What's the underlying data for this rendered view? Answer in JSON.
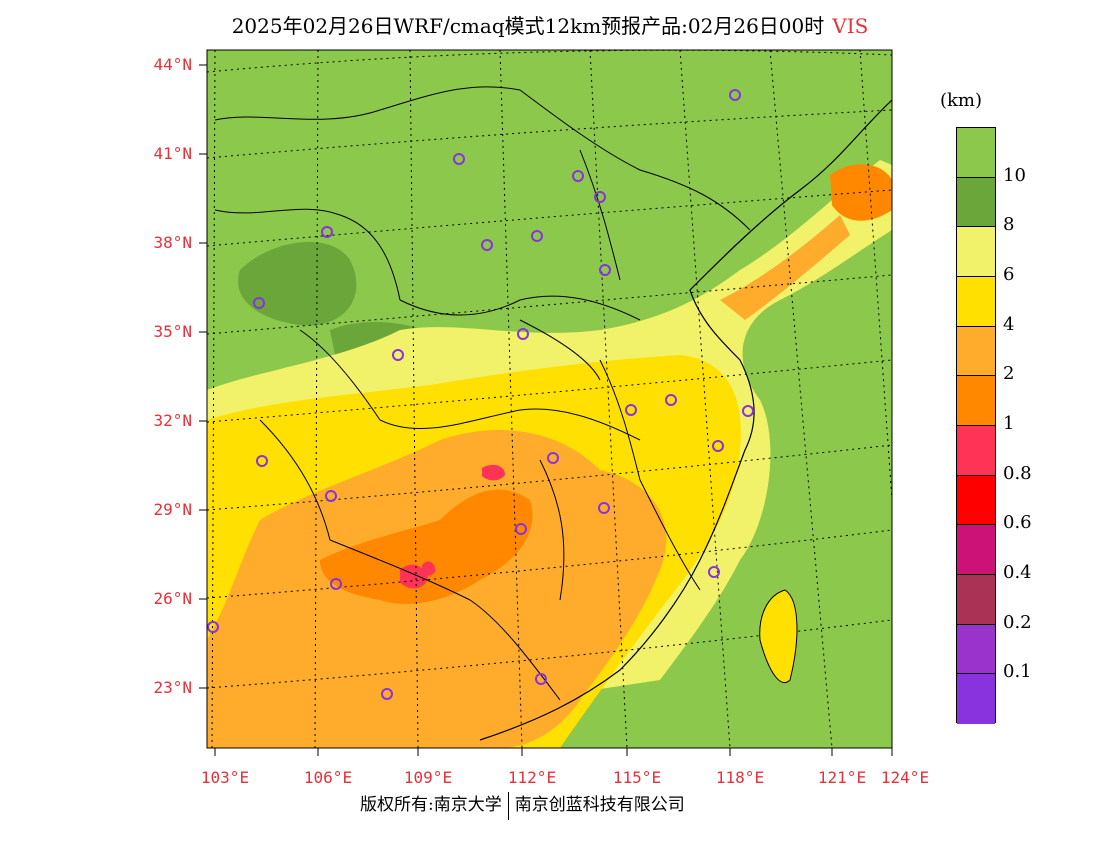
{
  "title": {
    "main": "2025年02月26日WRF/cmaq模式12km预报产品:02月26日00时",
    "variable": "VIS"
  },
  "axes": {
    "lat_labels": [
      "44°N",
      "41°N",
      "38°N",
      "35°N",
      "32°N",
      "29°N",
      "26°N",
      "23°N"
    ],
    "lon_labels": [
      "103°E",
      "106°E",
      "109°E",
      "112°E",
      "115°E",
      "118°E",
      "121°E",
      "124°E"
    ]
  },
  "legend": {
    "unit": "(km)",
    "labels": [
      "10",
      "8",
      "6",
      "4",
      "2",
      "1",
      "0.8",
      "0.6",
      "0.4",
      "0.2",
      "0.1"
    ],
    "bands": [
      {
        "color": "#8cc84b"
      },
      {
        "color": "#6aa63a"
      },
      {
        "color": "#f2f26a"
      },
      {
        "color": "#ffe000"
      },
      {
        "color": "#ffac2c"
      },
      {
        "color": "#ff8800"
      },
      {
        "color": "#ff3355"
      },
      {
        "color": "#ff0000"
      },
      {
        "color": "#cc1177"
      },
      {
        "color": "#aa3355"
      },
      {
        "color": "#9933cc"
      },
      {
        "color": "#8833dd"
      }
    ]
  },
  "stations_icon": "circle-marker-icon",
  "footer": {
    "left": "版权所有:南京大学",
    "right": "南京创蓝科技有限公司"
  }
}
